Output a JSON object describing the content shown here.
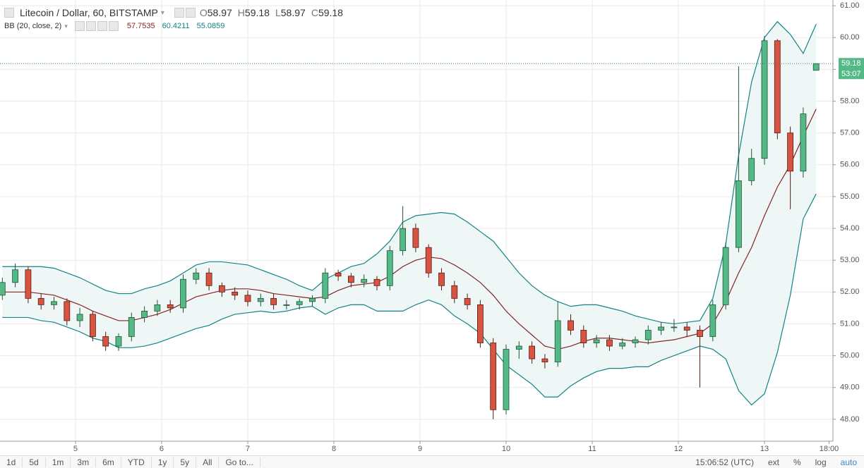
{
  "chart_data": {
    "type": "candlestick",
    "title": "Litecoin / Dollar, 60, BITSTAMP",
    "indicator": "BB (20, close, 2)",
    "ohlc_keys": [
      "O",
      "H",
      "L",
      "C"
    ],
    "countdown": "53:07",
    "up_color": "#53b987",
    "up_border": "#225437",
    "down_color": "#d75442",
    "down_border": "#5b1a13",
    "grid": true,
    "x": [
      4.15,
      4.3,
      4.45,
      4.6,
      4.75,
      4.9,
      5.05,
      5.2,
      5.35,
      5.5,
      5.65,
      5.8,
      5.95,
      6.1,
      6.25,
      6.4,
      6.55,
      6.7,
      6.85,
      7.0,
      7.15,
      7.3,
      7.45,
      7.6,
      7.75,
      7.9,
      8.05,
      8.2,
      8.35,
      8.5,
      8.65,
      8.8,
      8.95,
      9.1,
      9.25,
      9.4,
      9.55,
      9.7,
      9.85,
      10.0,
      10.15,
      10.3,
      10.45,
      10.6,
      10.75,
      10.9,
      11.05,
      11.2,
      11.35,
      11.5,
      11.65,
      11.8,
      11.95,
      12.1,
      12.25,
      12.4,
      12.55,
      12.7,
      12.85,
      13.0,
      13.15,
      13.3,
      13.45,
      13.6
    ],
    "open": [
      51.9,
      52.3,
      52.7,
      51.8,
      51.6,
      51.7,
      51.1,
      51.3,
      50.6,
      50.3,
      50.6,
      51.2,
      51.4,
      51.6,
      51.5,
      52.4,
      52.6,
      52.2,
      52.0,
      51.9,
      51.7,
      51.8,
      51.6,
      51.6,
      51.7,
      51.8,
      52.6,
      52.5,
      52.3,
      52.4,
      52.2,
      53.3,
      54.0,
      53.4,
      52.6,
      52.2,
      51.8,
      51.6,
      50.4,
      48.3,
      50.2,
      50.3,
      49.9,
      49.8,
      51.1,
      50.8,
      50.4,
      50.5,
      50.3,
      50.4,
      50.5,
      50.8,
      50.9,
      50.9,
      50.8,
      50.6,
      51.6,
      53.4,
      55.5,
      56.2,
      59.9,
      57.0,
      55.8,
      58.97
    ],
    "high": [
      52.45,
      52.9,
      52.8,
      51.95,
      51.85,
      51.8,
      51.5,
      51.4,
      50.75,
      50.7,
      51.35,
      51.55,
      51.75,
      51.75,
      52.55,
      52.75,
      52.75,
      52.3,
      52.15,
      52.05,
      51.95,
      51.95,
      51.75,
      51.8,
      51.9,
      52.75,
      52.7,
      52.6,
      52.55,
      52.5,
      53.45,
      54.7,
      54.15,
      53.5,
      52.75,
      52.35,
      51.95,
      51.75,
      50.55,
      50.35,
      50.45,
      50.45,
      50.05,
      51.7,
      51.3,
      50.95,
      50.65,
      50.65,
      50.55,
      50.6,
      50.95,
      51.05,
      51.15,
      51.05,
      50.95,
      51.75,
      53.55,
      59.1,
      56.5,
      60.05,
      59.95,
      57.2,
      57.8,
      59.18
    ],
    "low": [
      51.75,
      52.15,
      51.65,
      51.45,
      51.45,
      50.95,
      50.9,
      50.45,
      50.15,
      50.15,
      50.45,
      51.05,
      51.25,
      51.35,
      51.35,
      52.25,
      52.05,
      51.85,
      51.75,
      51.55,
      51.55,
      51.45,
      51.45,
      51.45,
      51.55,
      51.65,
      52.35,
      52.15,
      52.15,
      52.05,
      52.05,
      53.15,
      53.25,
      52.45,
      52.05,
      51.65,
      51.45,
      50.25,
      48.0,
      48.15,
      49.9,
      49.75,
      49.6,
      49.65,
      50.65,
      50.25,
      50.25,
      50.15,
      50.2,
      50.25,
      50.35,
      50.65,
      50.75,
      50.6,
      49.0,
      50.45,
      51.45,
      53.25,
      55.35,
      56.0,
      56.8,
      54.6,
      55.6,
      58.97
    ],
    "close": [
      52.3,
      52.7,
      51.8,
      51.6,
      51.7,
      51.1,
      51.3,
      50.6,
      50.3,
      50.6,
      51.2,
      51.4,
      51.6,
      51.5,
      52.4,
      52.6,
      52.2,
      52.0,
      51.9,
      51.7,
      51.8,
      51.6,
      51.6,
      51.7,
      51.8,
      52.6,
      52.5,
      52.3,
      52.4,
      52.2,
      53.3,
      54.0,
      53.4,
      52.6,
      52.2,
      51.8,
      51.6,
      50.4,
      48.3,
      50.2,
      50.3,
      49.9,
      49.8,
      51.1,
      50.8,
      50.4,
      50.5,
      50.3,
      50.4,
      50.5,
      50.8,
      50.9,
      50.9,
      50.8,
      50.6,
      51.6,
      53.4,
      55.5,
      56.2,
      59.9,
      57.0,
      55.8,
      57.6,
      59.18
    ],
    "bollinger": {
      "upper_color": "#138484",
      "middle_color": "#872323",
      "fill": "#eef6f6",
      "middle": [
        52.0,
        52.0,
        52.0,
        51.95,
        51.9,
        51.75,
        51.6,
        51.4,
        51.25,
        51.1,
        51.1,
        51.2,
        51.3,
        51.45,
        51.65,
        51.85,
        51.95,
        52.05,
        52.1,
        52.1,
        52.05,
        51.95,
        51.9,
        51.85,
        51.8,
        51.85,
        52.05,
        52.2,
        52.25,
        52.3,
        52.5,
        52.8,
        53.0,
        53.1,
        53.05,
        52.85,
        52.6,
        52.3,
        51.9,
        51.4,
        51.0,
        50.65,
        50.3,
        50.2,
        50.3,
        50.45,
        50.55,
        50.55,
        50.5,
        50.45,
        50.4,
        50.45,
        50.5,
        50.6,
        50.7,
        51.0,
        51.7,
        52.6,
        53.4,
        54.4,
        55.3,
        56.0,
        56.9,
        57.7535
      ],
      "upper": [
        52.8,
        52.8,
        52.8,
        52.8,
        52.75,
        52.6,
        52.45,
        52.25,
        52.05,
        51.95,
        51.95,
        52.1,
        52.2,
        52.35,
        52.6,
        52.85,
        52.95,
        52.95,
        52.9,
        52.85,
        52.7,
        52.55,
        52.4,
        52.2,
        52.05,
        52.4,
        52.6,
        52.8,
        52.9,
        53.2,
        53.6,
        54.2,
        54.4,
        54.45,
        54.5,
        54.45,
        54.2,
        53.9,
        53.6,
        53.1,
        52.6,
        52.2,
        51.9,
        51.7,
        51.55,
        51.6,
        51.6,
        51.5,
        51.4,
        51.25,
        51.15,
        51.05,
        51.0,
        51.05,
        51.1,
        51.8,
        53.5,
        56.3,
        58.6,
        60.0,
        60.5,
        60.1,
        59.5,
        60.4211
      ],
      "lower": [
        51.2,
        51.2,
        51.2,
        51.1,
        51.05,
        50.9,
        50.75,
        50.55,
        50.45,
        50.25,
        50.25,
        50.3,
        50.4,
        50.55,
        50.7,
        50.85,
        50.95,
        51.15,
        51.3,
        51.35,
        51.4,
        51.35,
        51.4,
        51.5,
        51.55,
        51.3,
        51.5,
        51.6,
        51.6,
        51.4,
        51.4,
        51.4,
        51.6,
        51.75,
        51.6,
        51.25,
        51.0,
        50.7,
        50.2,
        49.7,
        49.4,
        49.1,
        48.7,
        48.7,
        49.05,
        49.3,
        49.5,
        49.6,
        49.6,
        49.65,
        49.65,
        49.85,
        50.0,
        50.15,
        50.3,
        50.2,
        49.9,
        48.9,
        48.45,
        48.8,
        50.1,
        51.9,
        54.3,
        55.0859
      ]
    },
    "xlim": [
      4.123,
      13.795
    ],
    "xticks": [
      5,
      6,
      7,
      8,
      9,
      10,
      11,
      12,
      13,
      {
        "value": 13.75,
        "label": "18:00"
      }
    ],
    "ylim": [
      47.31,
      61.18
    ],
    "yticks": [
      {
        "value": 48,
        "label": "48.00"
      },
      {
        "value": 49,
        "label": "49.00"
      },
      {
        "value": 50,
        "label": "50.00"
      },
      {
        "value": 51,
        "label": "51.00"
      },
      {
        "value": 52,
        "label": "52.00"
      },
      {
        "value": 53,
        "label": "53.00"
      },
      {
        "value": 54,
        "label": "54.00"
      },
      {
        "value": 55,
        "label": "55.00"
      },
      {
        "value": 56,
        "label": "56.00"
      },
      {
        "value": 57,
        "label": "57.00"
      },
      {
        "value": 58,
        "label": "58.00"
      },
      {
        "value": 59,
        "label": "59.00"
      },
      {
        "value": 60,
        "label": "60.00"
      },
      {
        "value": 61,
        "label": "61.00"
      }
    ],
    "toolbar": {
      "ranges": [
        "1d",
        "5d",
        "1m",
        "3m",
        "6m",
        "YTD",
        "1y",
        "5y",
        "All",
        "Go to..."
      ],
      "time": "15:06:52 (UTC)",
      "options": [
        "ext",
        "%",
        "log",
        "auto"
      ]
    }
  }
}
